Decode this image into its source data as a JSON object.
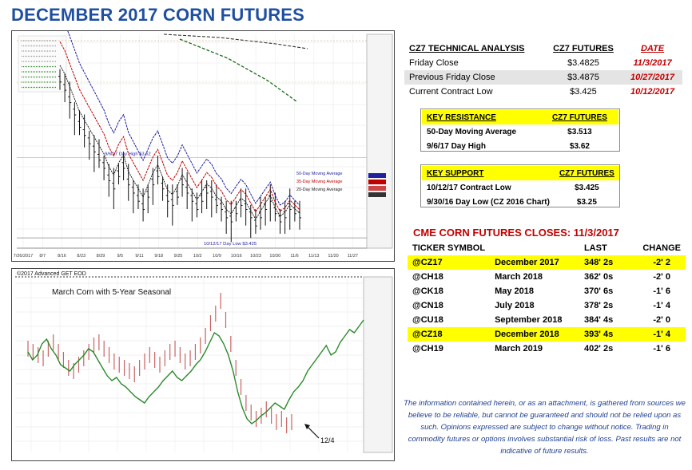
{
  "title": "DECEMBER 2017 CORN FUTURES",
  "colors": {
    "title": "#1f4fa0",
    "accent_red": "#c00000",
    "highlight": "#ffff00",
    "ma50": "#1f1fa0",
    "ma35": "#c00000",
    "ma20": "#222222",
    "seasonal": "#2a8a2a",
    "price_bars": "#c86464"
  },
  "chart_data": [
    {
      "type": "ohlc",
      "x_tick_labels": [
        "7/26/2017",
        "8/7",
        "8/16",
        "8/23",
        "8/29",
        "9/5",
        "9/11",
        "9/18",
        "9/25",
        "10/2",
        "10/9",
        "10/16",
        "10/23",
        "10/30",
        "11/6",
        "11/13",
        "11/20",
        "11/27"
      ],
      "annotations": {
        "day_high": "9/6/17 Day High $3.62",
        "day_low": "10/12/17 Day Low $3.425",
        "ma50": "50-Day Moving Average",
        "ma35": "35-Day Moving Average",
        "ma20": "20-Day Moving Average"
      },
      "ylim": [
        340,
        392
      ],
      "values": [
        381,
        379,
        376,
        373,
        370,
        368,
        366,
        364,
        362,
        360,
        357,
        355,
        358,
        360,
        356,
        354,
        352,
        350,
        353,
        356,
        358,
        355,
        352,
        351,
        353,
        356,
        354,
        352,
        350,
        352,
        354,
        353,
        351,
        350,
        348,
        347,
        349,
        351,
        350,
        348,
        346,
        348,
        350,
        352,
        349,
        347,
        348,
        350,
        349,
        348
      ]
    },
    {
      "type": "line",
      "header": "©2017 Advanced GET EOD",
      "title": "March Corn with 5-Year Seasonal",
      "arrow_label": "12/4",
      "seasonal": [
        60,
        55,
        58,
        65,
        68,
        62,
        58,
        52,
        50,
        48,
        52,
        55,
        58,
        62,
        60,
        55,
        50,
        45,
        42,
        44,
        40,
        38,
        35,
        32,
        30,
        28,
        32,
        35,
        38,
        42,
        45,
        48,
        44,
        42,
        45,
        48,
        52,
        55,
        60,
        66,
        72,
        70,
        65,
        58,
        48,
        35,
        25,
        18,
        15,
        17,
        20,
        22,
        25,
        28,
        26,
        24,
        30,
        35,
        38,
        42,
        48,
        52,
        56,
        60,
        64,
        58,
        60,
        66,
        70,
        74,
        72,
        76,
        80
      ],
      "price": [
        62,
        60,
        58,
        56,
        62,
        66,
        60,
        55,
        50,
        48,
        52,
        56,
        60,
        64,
        66,
        62,
        58,
        54,
        52,
        50,
        48,
        46,
        50,
        54,
        58,
        55,
        52,
        56,
        60,
        62,
        58,
        54,
        56,
        60,
        64,
        70,
        78,
        84,
        92,
        80,
        65,
        50,
        38,
        28,
        22,
        18,
        20,
        24,
        20,
        16,
        18,
        14,
        16
      ]
    }
  ],
  "tech": {
    "header": [
      "CZ7 TECHNICAL ANALYSIS",
      "CZ7 FUTURES",
      "DATE"
    ],
    "rows": [
      [
        "Friday Close",
        "$3.4825",
        "11/3/2017"
      ],
      [
        "Previous Friday Close",
        "$3.4875",
        "10/27/2017"
      ],
      [
        "Current Contract Low",
        "$3.425",
        "10/12/2017"
      ]
    ]
  },
  "resistance": {
    "header": [
      "KEY RESISTANCE",
      "CZ7 FUTURES"
    ],
    "rows": [
      [
        "50-Day Moving Average",
        "$3.513"
      ],
      [
        "9/6/17 Day High",
        "$3.62"
      ]
    ]
  },
  "support": {
    "header": [
      "KEY SUPPORT",
      "CZ7 FUTURES"
    ],
    "rows": [
      [
        "10/12/17 Contract Low",
        "$3.425"
      ],
      [
        "9/30/16 Day Low (CZ 2016 Chart)",
        "$3.25"
      ]
    ]
  },
  "closes": {
    "title": "CME CORN FUTURES CLOSES:  11/3/2017",
    "header": [
      "TICKER SYMBOL",
      "",
      "LAST",
      "CHANGE"
    ],
    "rows": [
      [
        "@CZ17",
        "December 2017",
        "348' 2s",
        "-2' 2"
      ],
      [
        "@CH18",
        "March 2018",
        "362' 0s",
        "-2' 0"
      ],
      [
        "@CK18",
        "May 2018",
        "370' 6s",
        "-1' 6"
      ],
      [
        "@CN18",
        "July 2018",
        "378' 2s",
        "-1' 4"
      ],
      [
        "@CU18",
        "September 2018",
        "384' 4s",
        "-2' 0"
      ],
      [
        "@CZ18",
        "December 2018",
        "393' 4s",
        "-1' 4"
      ],
      [
        "@CH19",
        "March 2019",
        "402' 2s",
        "-1' 6"
      ]
    ]
  },
  "disclaimer": "The information contained herein, or as an attachment, is gathered from sources we believe to be reliable, but cannot be guaranteed and should not be relied upon as such. Opinions expressed are subject to change without notice. Trading in commodity futures or options involves substantial risk of loss. Past results are not indicative of future results."
}
